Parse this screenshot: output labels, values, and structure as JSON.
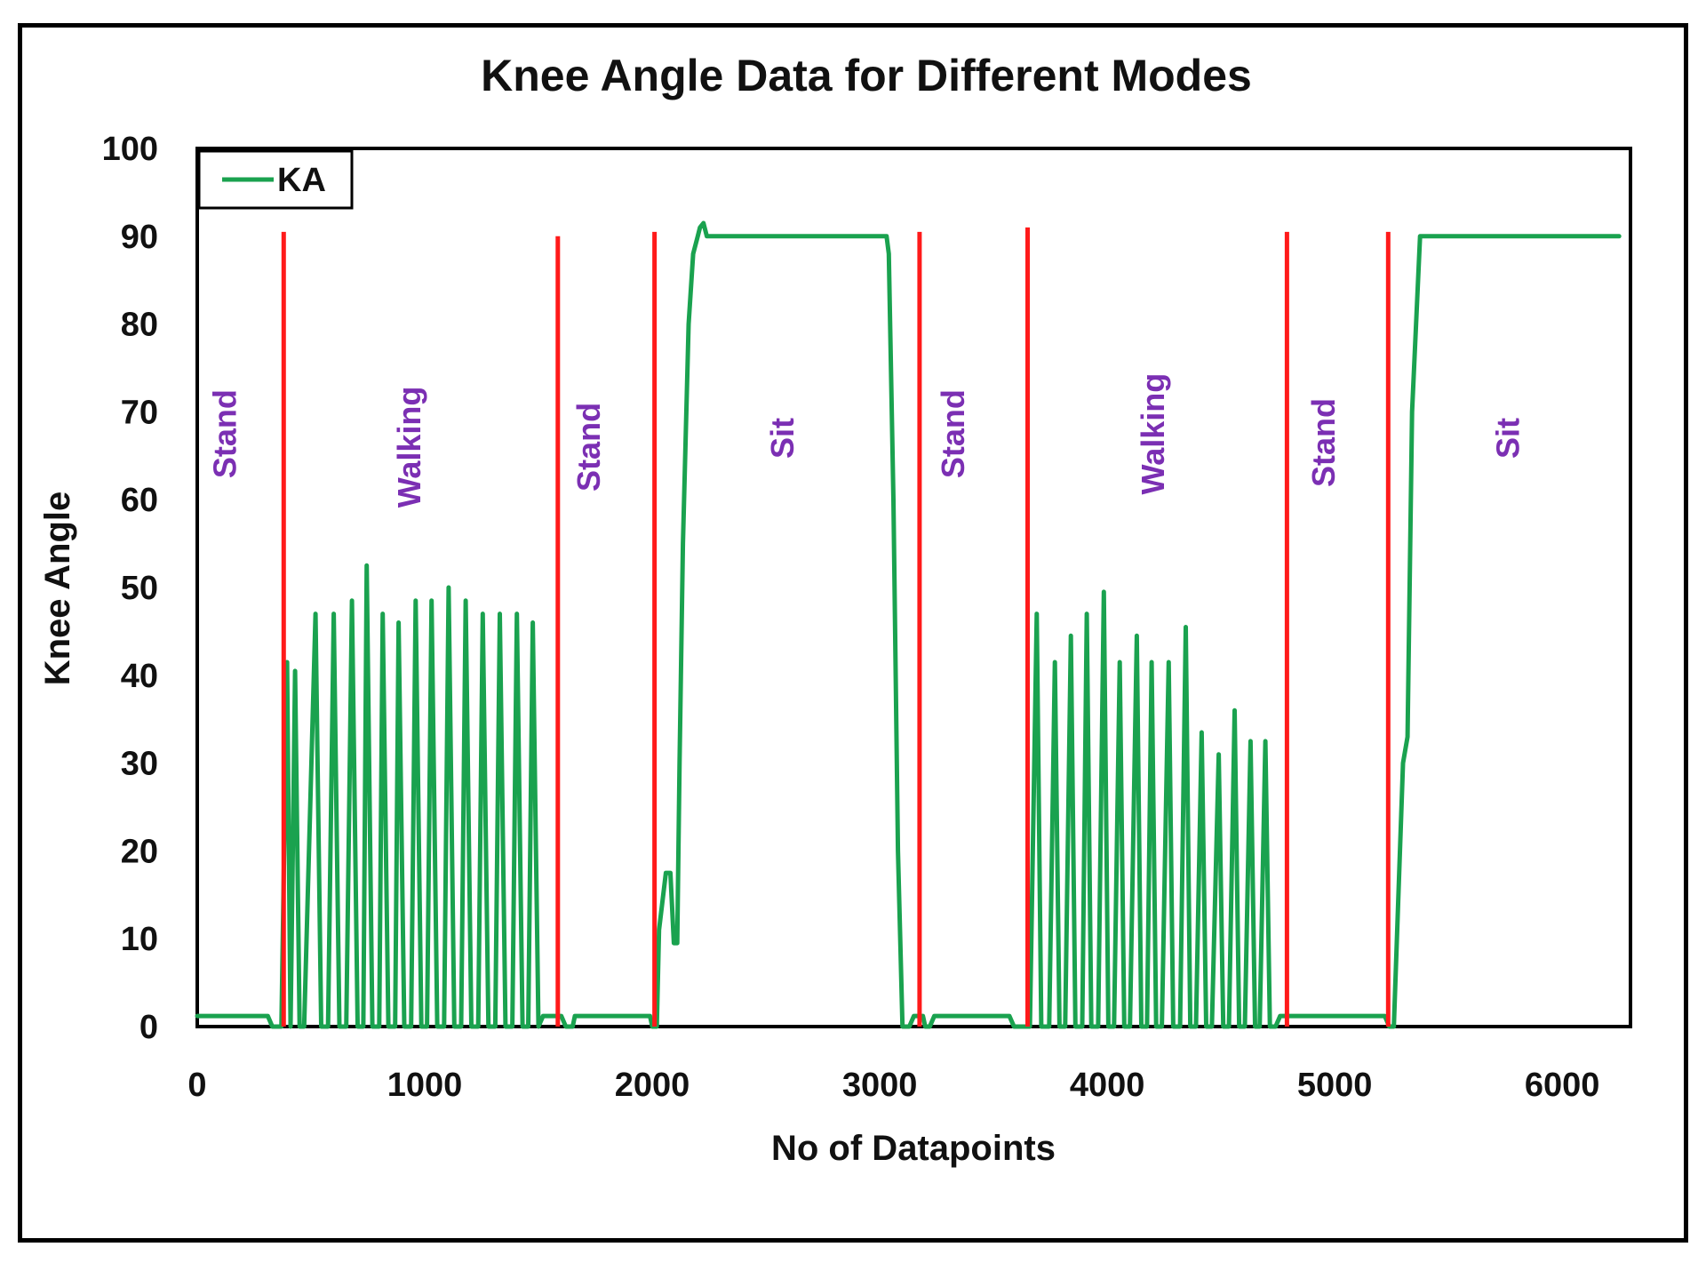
{
  "chart_data": {
    "type": "line",
    "title": "Knee Angle Data for Different Modes",
    "xlabel": "No of Datapoints",
    "ylabel": "Knee Angle",
    "xlim": [
      0,
      6300
    ],
    "ylim": [
      0,
      100
    ],
    "x_ticks": [
      "0",
      "1000",
      "2000",
      "3000",
      "4000",
      "5000",
      "6000"
    ],
    "x_tick_values": [
      0,
      1000,
      2000,
      3000,
      4000,
      5000,
      6000
    ],
    "y_ticks": [
      "0",
      "10",
      "20",
      "30",
      "40",
      "50",
      "60",
      "70",
      "80",
      "90",
      "100"
    ],
    "y_tick_values": [
      0,
      10,
      20,
      30,
      40,
      50,
      60,
      70,
      80,
      90,
      100
    ],
    "grid": false,
    "legend": {
      "position": "top-left",
      "entries": [
        "KA"
      ]
    },
    "colors": {
      "series": "#1aa24f",
      "boundary": "#ff1a1a",
      "mode_text": "#7b2fb3"
    },
    "series": [
      {
        "name": "KA",
        "points": [
          [
            0,
            1.2
          ],
          [
            310,
            1.2
          ],
          [
            330,
            0
          ],
          [
            370,
            0
          ],
          [
            395,
            41.5
          ],
          [
            410,
            0
          ],
          [
            430,
            40.5
          ],
          [
            450,
            0
          ],
          [
            470,
            0
          ],
          [
            520,
            47
          ],
          [
            545,
            0
          ],
          [
            575,
            0
          ],
          [
            600,
            47
          ],
          [
            625,
            0
          ],
          [
            655,
            0
          ],
          [
            680,
            48.5
          ],
          [
            705,
            0
          ],
          [
            730,
            0
          ],
          [
            745,
            52.5
          ],
          [
            770,
            0
          ],
          [
            800,
            0
          ],
          [
            815,
            47
          ],
          [
            840,
            0
          ],
          [
            870,
            0
          ],
          [
            885,
            46
          ],
          [
            910,
            0
          ],
          [
            940,
            0
          ],
          [
            960,
            48.5
          ],
          [
            985,
            0
          ],
          [
            1010,
            0
          ],
          [
            1030,
            48.5
          ],
          [
            1055,
            0
          ],
          [
            1085,
            0
          ],
          [
            1105,
            50
          ],
          [
            1130,
            0
          ],
          [
            1160,
            0
          ],
          [
            1180,
            48.5
          ],
          [
            1205,
            0
          ],
          [
            1235,
            0
          ],
          [
            1255,
            47
          ],
          [
            1280,
            0
          ],
          [
            1310,
            0
          ],
          [
            1330,
            47
          ],
          [
            1355,
            0
          ],
          [
            1385,
            0
          ],
          [
            1405,
            47
          ],
          [
            1430,
            0
          ],
          [
            1455,
            0
          ],
          [
            1475,
            46
          ],
          [
            1500,
            0
          ],
          [
            1520,
            1.2
          ],
          [
            1600,
            1.2
          ],
          [
            1620,
            0
          ],
          [
            1650,
            0
          ],
          [
            1660,
            1.2
          ],
          [
            1990,
            1.2
          ],
          [
            2000,
            0
          ],
          [
            2020,
            0
          ],
          [
            2030,
            11
          ],
          [
            2060,
            17.5
          ],
          [
            2080,
            17.5
          ],
          [
            2095,
            9.5
          ],
          [
            2110,
            9.5
          ],
          [
            2120,
            30
          ],
          [
            2135,
            55
          ],
          [
            2160,
            80
          ],
          [
            2180,
            88
          ],
          [
            2200,
            90
          ],
          [
            2210,
            91
          ],
          [
            2225,
            91.5
          ],
          [
            2240,
            90
          ],
          [
            2250,
            90
          ],
          [
            2700,
            90
          ],
          [
            3030,
            90
          ],
          [
            3040,
            88
          ],
          [
            3060,
            60
          ],
          [
            3080,
            20
          ],
          [
            3100,
            0
          ],
          [
            3130,
            0
          ],
          [
            3150,
            1.2
          ],
          [
            3190,
            1.2
          ],
          [
            3200,
            0
          ],
          [
            3220,
            0
          ],
          [
            3240,
            1.2
          ],
          [
            3570,
            1.2
          ],
          [
            3590,
            0
          ],
          [
            3640,
            0
          ],
          [
            3660,
            0
          ],
          [
            3690,
            47
          ],
          [
            3710,
            0
          ],
          [
            3745,
            0
          ],
          [
            3770,
            41.5
          ],
          [
            3790,
            0
          ],
          [
            3815,
            0
          ],
          [
            3840,
            44.5
          ],
          [
            3860,
            0
          ],
          [
            3890,
            0
          ],
          [
            3910,
            47
          ],
          [
            3930,
            0
          ],
          [
            3960,
            0
          ],
          [
            3985,
            49.5
          ],
          [
            4005,
            0
          ],
          [
            4030,
            0
          ],
          [
            4055,
            41.5
          ],
          [
            4075,
            0
          ],
          [
            4100,
            0
          ],
          [
            4130,
            44.5
          ],
          [
            4150,
            0
          ],
          [
            4175,
            0
          ],
          [
            4195,
            41.5
          ],
          [
            4215,
            0
          ],
          [
            4240,
            0
          ],
          [
            4270,
            41.5
          ],
          [
            4290,
            0
          ],
          [
            4320,
            0
          ],
          [
            4345,
            45.5
          ],
          [
            4365,
            0
          ],
          [
            4390,
            0
          ],
          [
            4415,
            33.5
          ],
          [
            4435,
            0
          ],
          [
            4460,
            0
          ],
          [
            4490,
            31
          ],
          [
            4510,
            0
          ],
          [
            4535,
            0
          ],
          [
            4560,
            36
          ],
          [
            4580,
            0
          ],
          [
            4605,
            0
          ],
          [
            4630,
            32.5
          ],
          [
            4650,
            0
          ],
          [
            4670,
            0
          ],
          [
            4695,
            32.5
          ],
          [
            4715,
            0
          ],
          [
            4740,
            0
          ],
          [
            4760,
            1.2
          ],
          [
            5220,
            1.2
          ],
          [
            5240,
            0
          ],
          [
            5260,
            0
          ],
          [
            5300,
            30
          ],
          [
            5320,
            33
          ],
          [
            5340,
            70
          ],
          [
            5375,
            90
          ],
          [
            5600,
            90
          ],
          [
            6250,
            90
          ]
        ]
      }
    ],
    "mode_boundaries": [
      {
        "x": 380,
        "y_top": 90.5
      },
      {
        "x": 1585,
        "y_top": 90
      },
      {
        "x": 2010,
        "y_top": 90.5
      },
      {
        "x": 3175,
        "y_top": 90.5
      },
      {
        "x": 3650,
        "y_top": 91
      },
      {
        "x": 4790,
        "y_top": 90.5
      },
      {
        "x": 5235,
        "y_top": 90.5
      }
    ],
    "mode_annotations": [
      {
        "text": "Stand",
        "x": 170,
        "y": 67.5
      },
      {
        "text": "Walking",
        "x": 980,
        "y": 66
      },
      {
        "text": "Stand",
        "x": 1770,
        "y": 66
      },
      {
        "text": "Sit",
        "x": 2620,
        "y": 67
      },
      {
        "text": "Stand",
        "x": 3370,
        "y": 67.5
      },
      {
        "text": "Walking",
        "x": 4250,
        "y": 67.5
      },
      {
        "text": "Stand",
        "x": 5000,
        "y": 66.5
      },
      {
        "text": "Sit",
        "x": 5810,
        "y": 67
      }
    ]
  }
}
